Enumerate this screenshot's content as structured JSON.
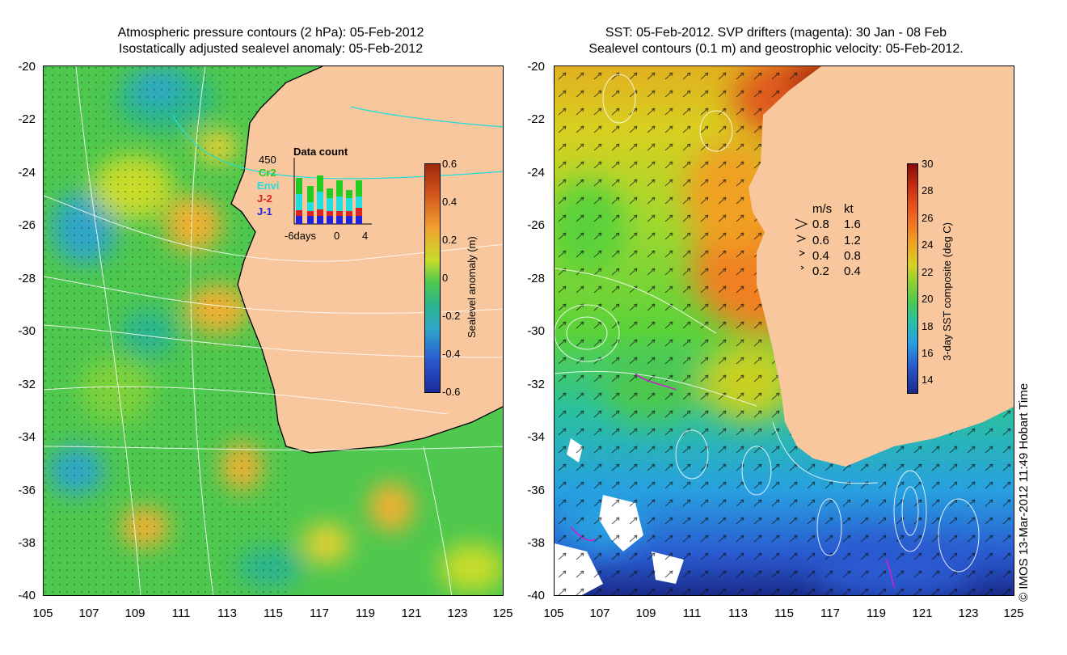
{
  "left_panel": {
    "title_line1": "Atmospheric pressure contours (2 hPa): 05-Feb-2012",
    "title_line2": "Isostatically adjusted sealevel anomaly: 05-Feb-2012",
    "colorbar": {
      "label": "Sealevel anomaly (m)",
      "ticks": [
        "0.6",
        "0.4",
        "0.2",
        "0",
        "-0.2",
        "-0.4",
        "-0.6"
      ],
      "range": [
        -0.6,
        0.6
      ]
    },
    "data_count": {
      "title": "Data count",
      "max_label": "450",
      "x_ticks": [
        "-6days",
        "0",
        "4"
      ],
      "series": [
        {
          "name": "Cr2",
          "color": "#22cc22"
        },
        {
          "name": "Envi",
          "color": "#22dddd"
        },
        {
          "name": "J-2",
          "color": "#dd2222"
        },
        {
          "name": "J-1",
          "color": "#2222dd"
        }
      ]
    }
  },
  "right_panel": {
    "title_line1": "SST: 05-Feb-2012. SVP drifters (magenta): 30 Jan - 08 Feb",
    "title_line2": "Sealevel contours (0.1 m) and geostrophic velocity: 05-Feb-2012.",
    "colorbar": {
      "label": "3-day SST composite (deg C)",
      "ticks": [
        "30",
        "28",
        "26",
        "24",
        "22",
        "20",
        "18",
        "16",
        "14"
      ],
      "range": [
        13,
        30
      ]
    },
    "velocity_scale": {
      "header_ms": "m/s",
      "header_kt": "kt",
      "rows": [
        {
          "ms": "0.8",
          "kt": "1.6"
        },
        {
          "ms": "0.6",
          "kt": "1.2"
        },
        {
          "ms": "0.4",
          "kt": "0.8"
        },
        {
          "ms": "0.2",
          "kt": "0.4"
        }
      ]
    }
  },
  "axes": {
    "y_ticks": [
      "-20",
      "-22",
      "-24",
      "-26",
      "-28",
      "-30",
      "-32",
      "-34",
      "-36",
      "-38",
      "-40"
    ],
    "x_ticks": [
      "105",
      "107",
      "109",
      "111",
      "113",
      "115",
      "117",
      "119",
      "121",
      "123",
      "125"
    ]
  },
  "credit": "© IMOS 13-Mar-2012 11:49 Hobart Time",
  "colors": {
    "land": "#f9c79d",
    "sla_low": "#1a2a99",
    "sla_mid": "#4ec84e",
    "sla_high": "#9b2a0a",
    "sst_low": "#1a2a88",
    "sst_mid": "#5ad23a",
    "sst_high": "#8b0a0a",
    "drifter": "#cc22cc"
  }
}
